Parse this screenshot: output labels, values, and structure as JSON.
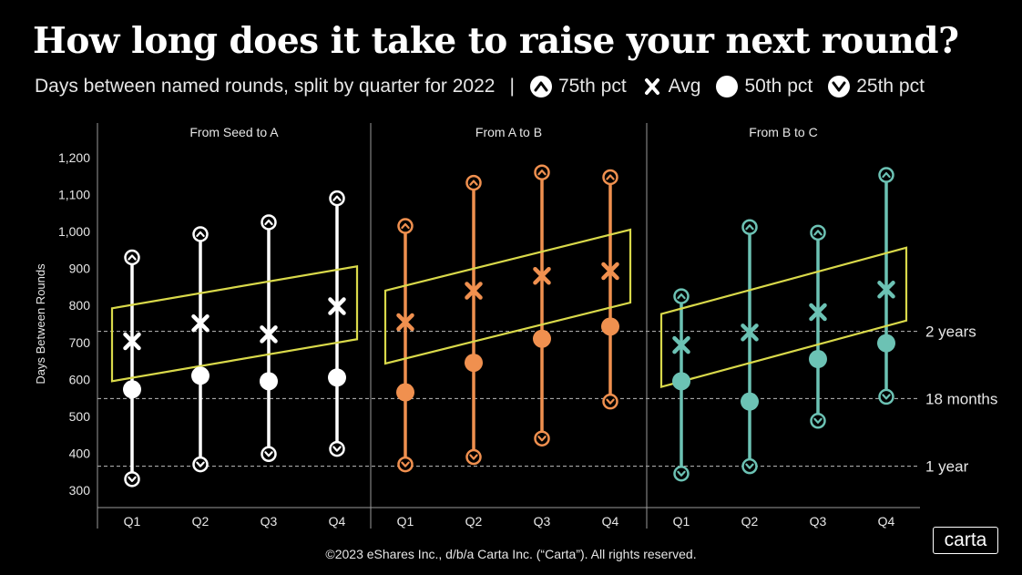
{
  "title": "How long does it take to raise your next round?",
  "subtitle": "Days between named rounds, split by quarter for 2022",
  "separator": "|",
  "legend": [
    {
      "symbol": "up-chevron-circle",
      "label": "75th pct"
    },
    {
      "symbol": "x",
      "label": "Avg"
    },
    {
      "symbol": "circle",
      "label": "50th pct"
    },
    {
      "symbol": "down-chevron-circle",
      "label": "25th pct"
    }
  ],
  "footer": "©2023 eShares Inc., d/b/a Carta Inc. (“Carta”). All rights reserved.",
  "brand": "carta",
  "chart_data": {
    "type": "dot-range",
    "ylabel": "Days Between Rounds",
    "ylim": [
      270,
      1210
    ],
    "yticks": [
      300,
      400,
      500,
      600,
      700,
      800,
      900,
      1000,
      1100,
      1200
    ],
    "ytick_labels": [
      "300",
      "400",
      "500",
      "600",
      "700",
      "800",
      "900",
      "1,000",
      "1,100",
      "1,200"
    ],
    "reference_lines": [
      {
        "value": 730,
        "label": "2 years"
      },
      {
        "value": 548,
        "label": "18 months"
      },
      {
        "value": 365,
        "label": "1 year"
      }
    ],
    "panels": [
      {
        "name": "From Seed to A",
        "color": "#ffffff",
        "categories": [
          "Q1",
          "Q2",
          "Q3",
          "Q4"
        ],
        "p75": [
          930,
          993,
          1025,
          1090
        ],
        "avg": [
          703,
          752,
          722,
          798
        ],
        "p50": [
          573,
          610,
          595,
          605
        ],
        "p25": [
          330,
          370,
          398,
          412
        ]
      },
      {
        "name": "From A to B",
        "color": "#f0904f",
        "categories": [
          "Q1",
          "Q2",
          "Q3",
          "Q4"
        ],
        "p75": [
          1015,
          1132,
          1160,
          1147
        ],
        "avg": [
          755,
          840,
          880,
          893
        ],
        "p50": [
          565,
          645,
          710,
          743
        ],
        "p25": [
          370,
          390,
          440,
          540
        ]
      },
      {
        "name": "From B to C",
        "color": "#6cc2b4",
        "categories": [
          "Q1",
          "Q2",
          "Q3",
          "Q4"
        ],
        "p75": [
          825,
          1012,
          997,
          1153
        ],
        "avg": [
          693,
          727,
          782,
          843
        ],
        "p50": [
          595,
          540,
          655,
          698
        ],
        "p25": [
          345,
          365,
          488,
          553
        ]
      }
    ],
    "trend_box_color": "#d9d94a"
  }
}
